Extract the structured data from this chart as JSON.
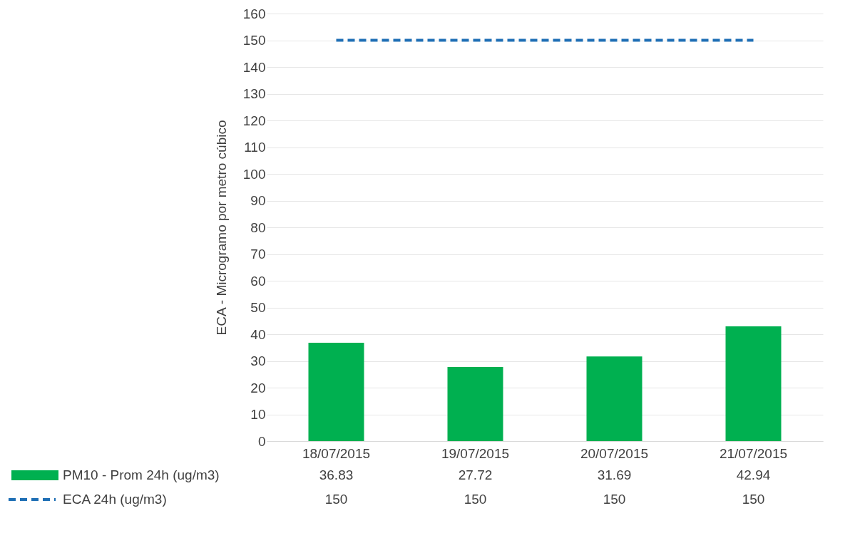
{
  "chart_data": {
    "type": "bar",
    "ylabel": "ECA - Microgramo por metro cúbico",
    "categories": [
      "18/07/2015",
      "19/07/2015",
      "20/07/2015",
      "21/07/2015"
    ],
    "series": [
      {
        "name": "PM10 - Prom 24h (ug/m3)",
        "color": "#00b050",
        "values": [
          36.83,
          27.72,
          31.69,
          42.94
        ]
      },
      {
        "name": "ECA 24h (ug/m3)",
        "type": "line",
        "line_style": "dashed",
        "color": "#1f6fb5",
        "values": [
          150,
          150,
          150,
          150
        ]
      }
    ],
    "ylim": [
      0,
      160
    ],
    "yticks": [
      0,
      10,
      20,
      30,
      40,
      50,
      60,
      70,
      80,
      90,
      100,
      110,
      120,
      130,
      140,
      150,
      160
    ],
    "grid": "y",
    "legend": "bottom",
    "data_labels": true
  }
}
